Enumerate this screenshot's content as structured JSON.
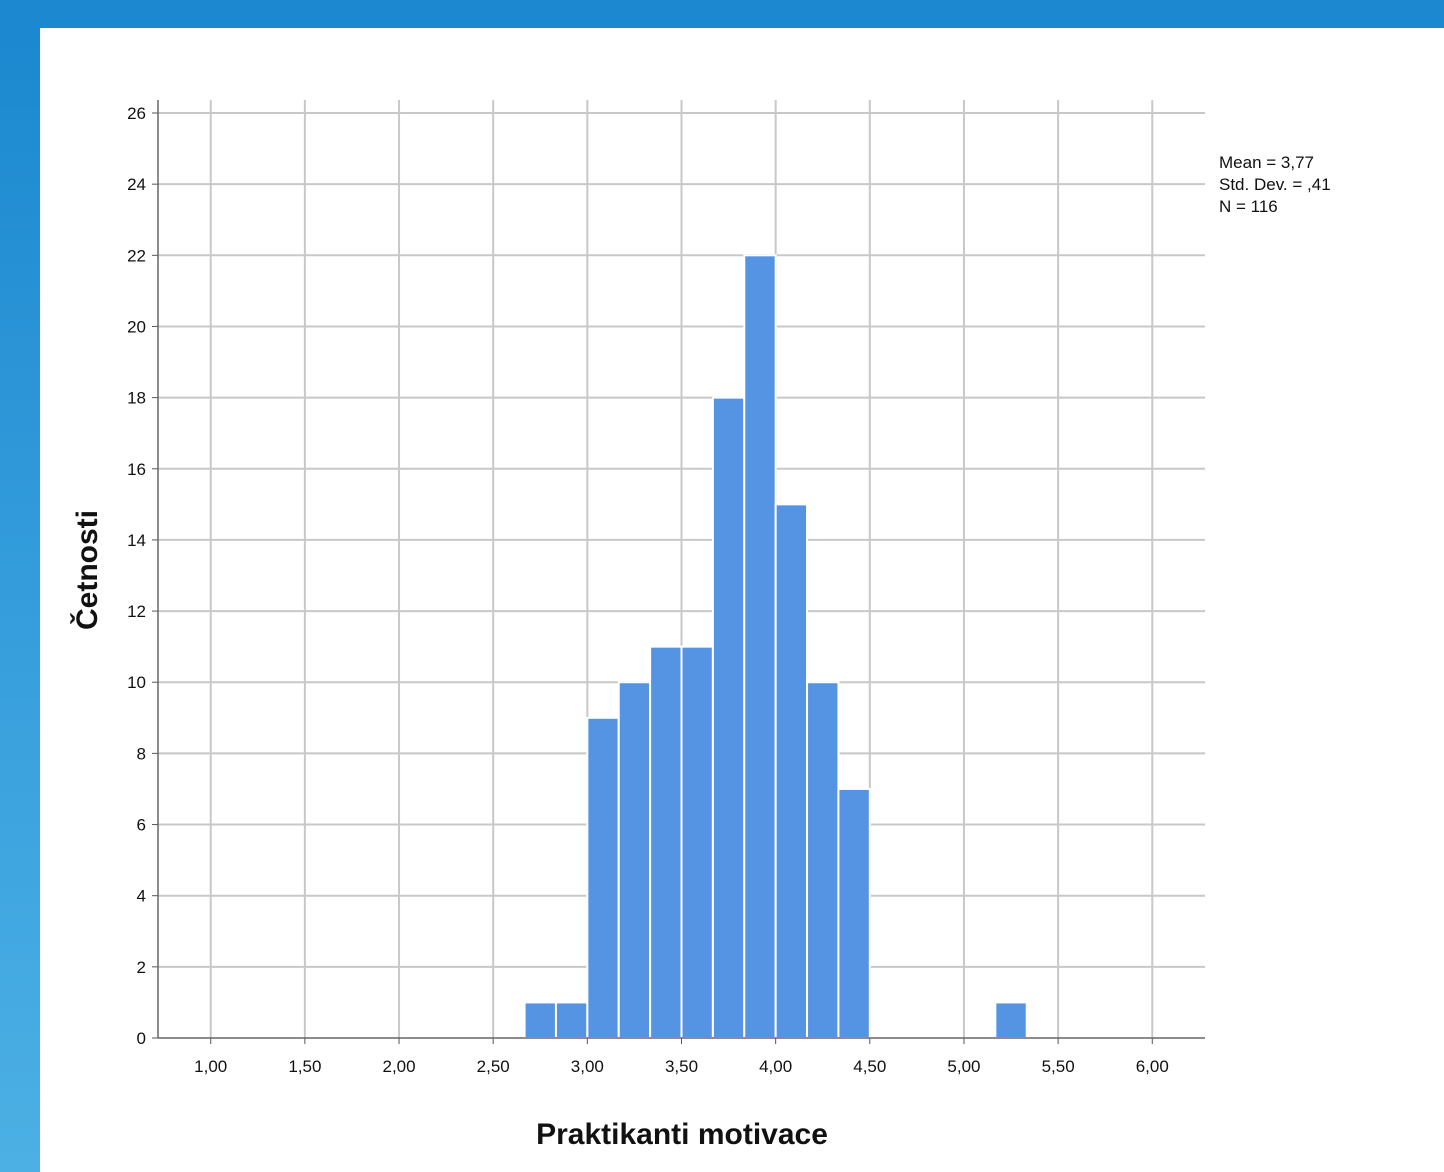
{
  "chart_data": {
    "type": "bar",
    "chart_subtype": "histogram",
    "xlabel": "Praktikanti motivace",
    "ylabel": "Četnosti",
    "xlim": [
      0.72,
      6.28
    ],
    "ylim": [
      0,
      26.3
    ],
    "x_ticks": [
      {
        "value": 1.0,
        "label": "1,00"
      },
      {
        "value": 1.5,
        "label": "1,50"
      },
      {
        "value": 2.0,
        "label": "2,00"
      },
      {
        "value": 2.5,
        "label": "2,50"
      },
      {
        "value": 3.0,
        "label": "3,00"
      },
      {
        "value": 3.5,
        "label": "3,50"
      },
      {
        "value": 4.0,
        "label": "4,00"
      },
      {
        "value": 4.5,
        "label": "4,50"
      },
      {
        "value": 5.0,
        "label": "5,00"
      },
      {
        "value": 5.5,
        "label": "5,50"
      },
      {
        "value": 6.0,
        "label": "6,00"
      }
    ],
    "y_ticks": [
      0,
      2,
      4,
      6,
      8,
      10,
      12,
      14,
      16,
      18,
      20,
      22,
      24,
      26
    ],
    "bin_width": 0.1667,
    "bins": [
      {
        "start": 2.6667,
        "count": 1
      },
      {
        "start": 2.8333,
        "count": 1
      },
      {
        "start": 3.0,
        "count": 9
      },
      {
        "start": 3.1667,
        "count": 10
      },
      {
        "start": 3.3333,
        "count": 11
      },
      {
        "start": 3.5,
        "count": 11
      },
      {
        "start": 3.6667,
        "count": 18
      },
      {
        "start": 3.8333,
        "count": 22
      },
      {
        "start": 4.0,
        "count": 15
      },
      {
        "start": 4.1667,
        "count": 10
      },
      {
        "start": 4.3333,
        "count": 7
      },
      {
        "start": 5.1667,
        "count": 1
      }
    ],
    "stats_lines": [
      "Mean = 3,77",
      "Std. Dev. = ,41",
      "N = 116"
    ],
    "grid": true,
    "bar_color": "#5594e3",
    "grid_color": "#c8c8c8",
    "legend_position": "top-right"
  },
  "colors": {
    "frame_blue": "#1b88cf",
    "background": "#ffffff"
  }
}
